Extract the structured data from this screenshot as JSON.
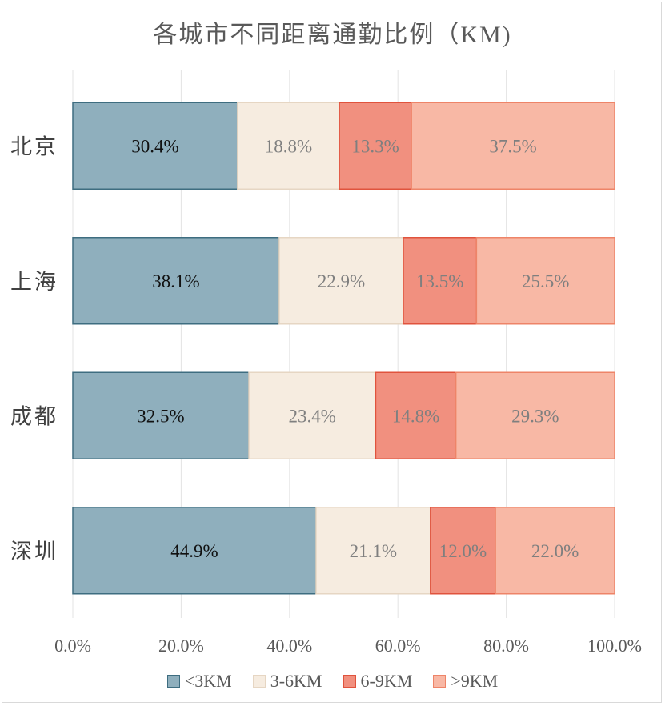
{
  "chart_data": {
    "type": "bar",
    "orientation": "horizontal",
    "stacked": true,
    "title": "各城市不同距离通勤比例（KM)",
    "categories": [
      "北京",
      "上海",
      "成都",
      "深圳"
    ],
    "series": [
      {
        "name": "<3KM",
        "values": [
          30.4,
          38.1,
          32.5,
          44.9
        ],
        "labels": [
          "30.4%",
          "38.1%",
          "32.5%",
          "44.9%"
        ],
        "color": "#8fafbd",
        "border": "#3e6d80",
        "label_color": "#111111"
      },
      {
        "name": "3-6KM",
        "values": [
          18.8,
          22.9,
          23.4,
          21.1
        ],
        "labels": [
          "18.8%",
          "22.9%",
          "23.4%",
          "21.1%"
        ],
        "color": "#f6ece0",
        "border": "#e6d6c3",
        "label_color": "#7f7f7f"
      },
      {
        "name": "6-9KM",
        "values": [
          13.3,
          13.5,
          14.8,
          12.0
        ],
        "labels": [
          "13.3%",
          "13.5%",
          "14.8%",
          "12.0%"
        ],
        "color": "#f1907f",
        "border": "#e0533d",
        "label_color": "#7f7f7f"
      },
      {
        "name": ">9KM",
        "values": [
          37.5,
          25.5,
          29.3,
          22.0
        ],
        "labels": [
          "37.5%",
          "25.5%",
          "29.3%",
          "22.0%"
        ],
        "color": "#f8b8a5",
        "border": "#ee8468",
        "label_color": "#7f7f7f"
      }
    ],
    "xlim": [
      0,
      100
    ],
    "x_ticks": [
      0,
      20,
      40,
      60,
      80,
      100
    ],
    "x_tick_labels": [
      "0.0%",
      "20.0%",
      "40.0%",
      "60.0%",
      "80.0%",
      "100.0%"
    ],
    "grid": true,
    "legend_position": "bottom"
  }
}
